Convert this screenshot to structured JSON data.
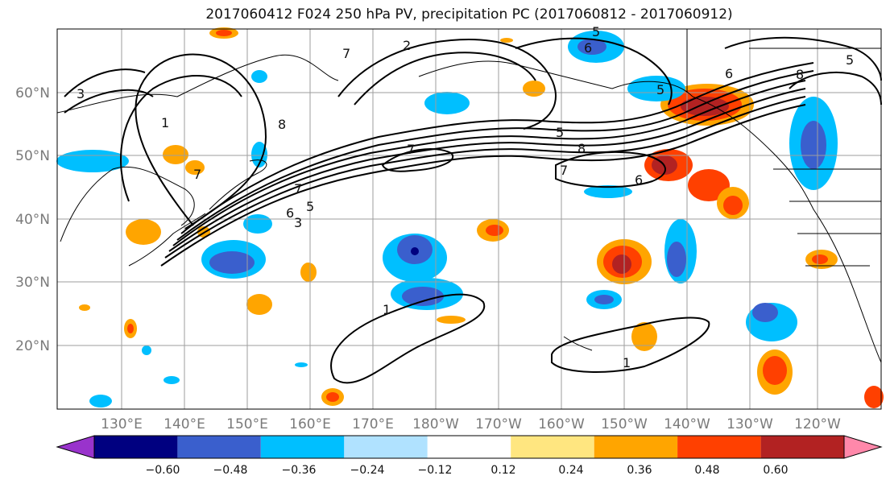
{
  "title": "2017060412 F024 250 hPa PV, precipitation PC (2017060812 - 2017060912)",
  "map": {
    "x_ticks": [
      "130°E",
      "140°E",
      "150°E",
      "160°E",
      "170°E",
      "180°W",
      "170°W",
      "160°W",
      "150°W",
      "140°W",
      "130°W",
      "120°W"
    ],
    "y_ticks": [
      "60°N",
      "50°N",
      "40°N",
      "30°N",
      "20°N"
    ],
    "grid": true,
    "contour_labels": [
      "3",
      "5",
      "2",
      "7",
      "8",
      "6",
      "5",
      "6",
      "7",
      "5",
      "3",
      "1",
      "5",
      "7",
      "7",
      "8",
      "7",
      "6",
      "1",
      "1",
      "6",
      "5",
      "8"
    ]
  },
  "colorbar": {
    "ticks": [
      "−0.60",
      "−0.48",
      "−0.36",
      "−0.24",
      "−0.12",
      "0.12",
      "0.24",
      "0.36",
      "0.48",
      "0.60"
    ],
    "colors": [
      "#9933cc",
      "#000080",
      "#3a5fcd",
      "#00bfff",
      "#b0e2ff",
      "#ffffff",
      "#ffe680",
      "#ffa500",
      "#ff4000",
      "#b22222",
      "#ff88aa"
    ],
    "extend": "both"
  }
}
